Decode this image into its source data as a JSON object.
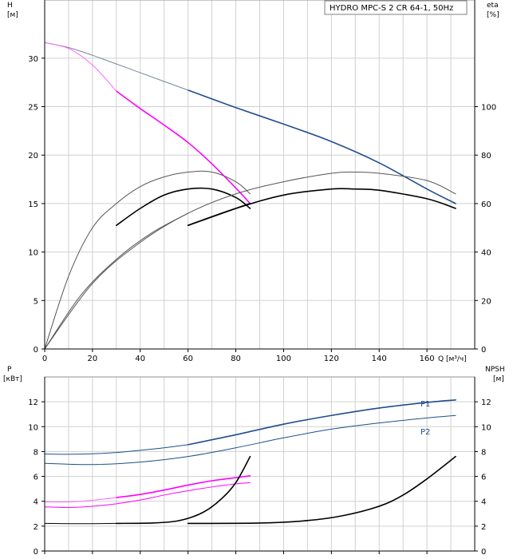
{
  "chart_data": [
    {
      "type": "line",
      "title": "HYDRO MPC-S 2 CR 64-1, 50Hz",
      "left_axis": {
        "label_line1": "H",
        "label_line2": "[м]",
        "range": [
          0,
          36
        ],
        "ticks": [
          0,
          5,
          10,
          15,
          20,
          25,
          30
        ]
      },
      "right_axis": {
        "label_line1": "eta",
        "label_line2": "[%]",
        "range": [
          0,
          144
        ],
        "ticks": [
          0,
          20,
          40,
          60,
          80,
          100
        ]
      },
      "x_axis": {
        "label": "Q [м³/ч]",
        "range": [
          0,
          180
        ],
        "ticks": [
          0,
          20,
          40,
          60,
          80,
          100,
          120,
          140,
          160
        ]
      },
      "grid": true,
      "series": [
        {
          "axis": "left",
          "color": "#1f4e8c",
          "width": 1.6,
          "x": [
            60,
            80,
            100,
            120,
            140,
            160,
            172
          ],
          "y": [
            26.7,
            24.9,
            23.2,
            21.4,
            19.2,
            16.5,
            15.0
          ]
        },
        {
          "axis": "left",
          "color": "#7a8796",
          "width": 1,
          "x": [
            0,
            10,
            20,
            30,
            40,
            50,
            60
          ],
          "y": [
            31.6,
            31.1,
            30.3,
            29.4,
            28.5,
            27.6,
            26.7
          ]
        },
        {
          "axis": "left",
          "color": "#ff00ff",
          "width": 1.6,
          "x": [
            30,
            40,
            50,
            60,
            70,
            80,
            86
          ],
          "y": [
            26.6,
            24.8,
            23.1,
            21.3,
            19.1,
            16.6,
            15.0
          ]
        },
        {
          "axis": "left",
          "color": "#ff66ff",
          "width": 1,
          "x": [
            0,
            10,
            20,
            30
          ],
          "y": [
            31.6,
            31.0,
            29.3,
            26.6
          ]
        },
        {
          "axis": "right",
          "color": "#000000",
          "width": 1.6,
          "x": [
            30,
            40,
            50,
            60,
            70,
            80,
            86
          ],
          "y": [
            51,
            58,
            63.5,
            66,
            66,
            62.5,
            58
          ]
        },
        {
          "axis": "right",
          "color": "#555555",
          "width": 1,
          "x": [
            0,
            10,
            20,
            30,
            40,
            50,
            60,
            70,
            80,
            86
          ],
          "y": [
            0,
            30,
            50,
            60,
            67,
            71,
            73,
            73,
            69,
            64
          ]
        },
        {
          "axis": "right",
          "color": "#000000",
          "width": 1.6,
          "x": [
            60,
            80,
            100,
            120,
            130,
            140,
            160,
            172
          ],
          "y": [
            51,
            58,
            63.5,
            66,
            66,
            65.5,
            62,
            58
          ]
        },
        {
          "axis": "right",
          "color": "#555555",
          "width": 1,
          "x": [
            0,
            20,
            40,
            60,
            80,
            100,
            120,
            130,
            140,
            160,
            172
          ],
          "y": [
            0,
            27,
            44,
            56,
            64,
            69,
            72.5,
            73,
            72.5,
            69.5,
            64
          ]
        },
        {
          "axis": "right",
          "color": "#000000",
          "width": 1.6,
          "x": [
            60,
            80,
            86
          ],
          "y": [
            51,
            58,
            60
          ]
        },
        {
          "axis": "right",
          "color": "#555555",
          "width": 1,
          "x": [
            0,
            15,
            30,
            45,
            60
          ],
          "y": [
            0,
            22,
            37,
            48,
            56
          ]
        }
      ]
    },
    {
      "type": "line",
      "left_axis": {
        "label_line1": "P",
        "label_line2": "[кВт]",
        "range": [
          0,
          14
        ],
        "ticks": [
          0,
          2,
          4,
          6,
          8,
          10,
          12
        ]
      },
      "right_axis": {
        "label_line1": "NPSH",
        "label_line2": "[м]",
        "range": [
          0,
          14
        ],
        "ticks": [
          0,
          2,
          4,
          6,
          8,
          10,
          12
        ]
      },
      "x_axis": {
        "range": [
          0,
          180
        ]
      },
      "grid": true,
      "series": [
        {
          "name": "P1",
          "axis": "left",
          "color": "#1f4e8c",
          "width": 1.6,
          "x": [
            60,
            80,
            100,
            120,
            140,
            160,
            172
          ],
          "y": [
            8.55,
            9.35,
            10.2,
            10.9,
            11.5,
            11.95,
            12.15
          ]
        },
        {
          "axis": "left",
          "color": "#1f4e8c",
          "width": 1,
          "x": [
            0,
            10,
            20,
            30,
            40,
            50,
            60
          ],
          "y": [
            7.8,
            7.78,
            7.82,
            7.92,
            8.1,
            8.3,
            8.55
          ]
        },
        {
          "name": "P2",
          "axis": "left",
          "color": "#1f4e8c",
          "width": 1,
          "x": [
            0,
            20,
            40,
            60,
            80,
            100,
            120,
            140,
            160,
            172
          ],
          "y": [
            7.05,
            6.95,
            7.15,
            7.6,
            8.3,
            9.1,
            9.8,
            10.3,
            10.7,
            10.9
          ]
        },
        {
          "axis": "left",
          "color": "#ff00ff",
          "width": 1.6,
          "x": [
            30,
            40,
            50,
            60,
            70,
            80,
            86
          ],
          "y": [
            4.3,
            4.55,
            4.9,
            5.3,
            5.65,
            5.9,
            6.05
          ]
        },
        {
          "axis": "left",
          "color": "#ff66ff",
          "width": 1,
          "x": [
            0,
            10,
            20,
            30
          ],
          "y": [
            3.95,
            3.95,
            4.08,
            4.3
          ]
        },
        {
          "axis": "left",
          "color": "#ff00ff",
          "width": 1,
          "x": [
            0,
            10,
            20,
            30,
            40,
            50,
            60,
            70,
            80,
            86
          ],
          "y": [
            3.55,
            3.5,
            3.6,
            3.8,
            4.1,
            4.5,
            4.85,
            5.15,
            5.4,
            5.5
          ]
        },
        {
          "axis": "right",
          "color": "#000000",
          "width": 1.6,
          "x": [
            30,
            45,
            55,
            62,
            68,
            74,
            80,
            86
          ],
          "y": [
            2.22,
            2.25,
            2.4,
            2.75,
            3.3,
            4.2,
            5.5,
            7.6
          ]
        },
        {
          "axis": "right",
          "color": "#000000",
          "width": 1,
          "x": [
            0,
            10,
            20,
            30
          ],
          "y": [
            2.22,
            2.2,
            2.2,
            2.22
          ]
        },
        {
          "axis": "right",
          "color": "#000000",
          "width": 1.6,
          "x": [
            60,
            90,
            110,
            125,
            140,
            150,
            160,
            172
          ],
          "y": [
            2.22,
            2.25,
            2.45,
            2.85,
            3.6,
            4.5,
            5.8,
            7.6
          ]
        }
      ]
    }
  ],
  "labels": {
    "p1": "P1",
    "p2": "P2"
  },
  "colors": {
    "grid": "#d0d0d0",
    "frame": "#909090",
    "legend_border": "#808080"
  }
}
